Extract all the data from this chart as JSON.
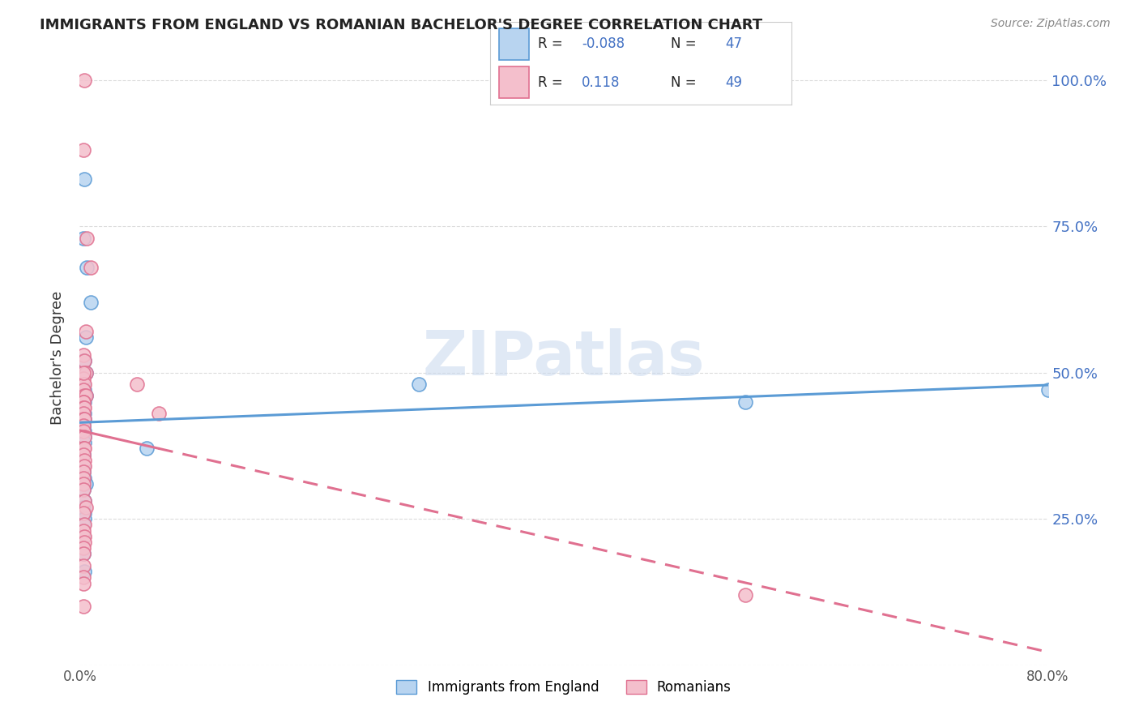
{
  "title": "IMMIGRANTS FROM ENGLAND VS ROMANIAN BACHELOR'S DEGREE CORRELATION CHART",
  "source": "Source: ZipAtlas.com",
  "ylabel": "Bachelor's Degree",
  "ytick_vals": [
    0.0,
    0.25,
    0.5,
    0.75,
    1.0
  ],
  "ytick_labels": [
    "",
    "25.0%",
    "50.0%",
    "75.0%",
    "100.0%"
  ],
  "watermark": "ZIPatlas",
  "eng_R": "-0.088",
  "eng_N": "47",
  "rom_R": "0.118",
  "rom_N": "49",
  "eng_color_fill": "#b8d4f0",
  "eng_color_edge": "#5b9bd5",
  "rom_color_fill": "#f4bfcc",
  "rom_color_edge": "#e07090",
  "xlim": [
    0.0,
    0.8
  ],
  "ylim": [
    0.0,
    1.05
  ],
  "background_color": "#ffffff",
  "title_color": "#222222",
  "right_axis_color": "#4472c4",
  "eng_x": [
    0.004,
    0.003,
    0.006,
    0.009,
    0.005,
    0.003,
    0.004,
    0.005,
    0.003,
    0.004,
    0.003,
    0.004,
    0.005,
    0.003,
    0.003,
    0.003,
    0.004,
    0.003,
    0.003,
    0.004,
    0.003,
    0.003,
    0.004,
    0.003,
    0.004,
    0.003,
    0.004,
    0.004,
    0.003,
    0.003,
    0.003,
    0.003,
    0.004,
    0.005,
    0.003,
    0.004,
    0.003,
    0.004,
    0.004,
    0.003,
    0.003,
    0.28,
    0.055,
    0.8,
    0.55,
    0.003,
    0.004
  ],
  "eng_y": [
    0.83,
    0.73,
    0.68,
    0.62,
    0.56,
    0.52,
    0.52,
    0.5,
    0.48,
    0.47,
    0.46,
    0.46,
    0.46,
    0.46,
    0.46,
    0.45,
    0.45,
    0.44,
    0.44,
    0.43,
    0.42,
    0.42,
    0.42,
    0.41,
    0.4,
    0.4,
    0.39,
    0.38,
    0.37,
    0.36,
    0.34,
    0.33,
    0.32,
    0.31,
    0.3,
    0.28,
    0.27,
    0.26,
    0.25,
    0.24,
    0.22,
    0.48,
    0.37,
    0.47,
    0.45,
    0.19,
    0.16
  ],
  "rom_x": [
    0.004,
    0.003,
    0.006,
    0.009,
    0.005,
    0.003,
    0.004,
    0.005,
    0.003,
    0.004,
    0.003,
    0.004,
    0.005,
    0.003,
    0.003,
    0.003,
    0.004,
    0.003,
    0.003,
    0.004,
    0.003,
    0.003,
    0.004,
    0.003,
    0.004,
    0.003,
    0.004,
    0.004,
    0.003,
    0.003,
    0.003,
    0.003,
    0.004,
    0.005,
    0.003,
    0.004,
    0.003,
    0.004,
    0.004,
    0.003,
    0.003,
    0.047,
    0.065,
    0.003,
    0.003,
    0.55,
    0.003,
    0.003,
    0.003
  ],
  "rom_y": [
    1.0,
    0.88,
    0.73,
    0.68,
    0.57,
    0.53,
    0.52,
    0.5,
    0.49,
    0.48,
    0.47,
    0.46,
    0.46,
    0.45,
    0.45,
    0.44,
    0.44,
    0.43,
    0.42,
    0.42,
    0.41,
    0.4,
    0.39,
    0.37,
    0.37,
    0.36,
    0.35,
    0.34,
    0.33,
    0.32,
    0.31,
    0.3,
    0.28,
    0.27,
    0.26,
    0.24,
    0.23,
    0.22,
    0.21,
    0.2,
    0.19,
    0.48,
    0.43,
    0.17,
    0.15,
    0.12,
    0.5,
    0.14,
    0.1
  ]
}
